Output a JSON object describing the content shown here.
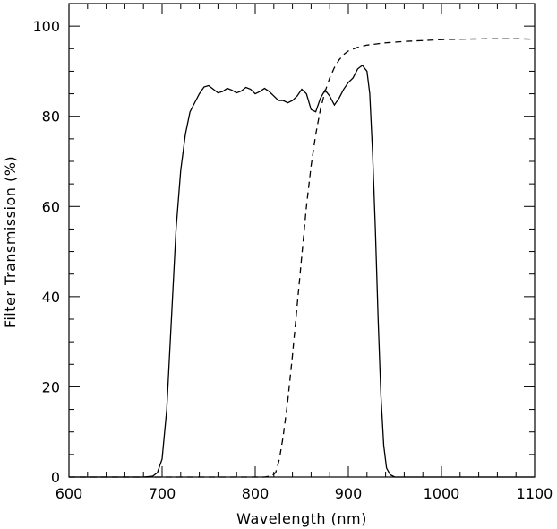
{
  "chart_data": {
    "type": "line",
    "title": "",
    "xlabel": "Wavelength (nm)",
    "ylabel": "Filter Transmission (%)",
    "xlim": [
      600,
      1100
    ],
    "ylim": [
      0,
      105
    ],
    "x_ticks": [
      600,
      700,
      800,
      900,
      1000,
      1100
    ],
    "y_ticks": [
      0,
      20,
      40,
      60,
      80,
      100
    ],
    "x_minor_step": 20,
    "y_minor_step": 5,
    "grid": false,
    "legend": "none",
    "series": [
      {
        "style": "solid",
        "color": "#000000",
        "points": [
          [
            600,
            0
          ],
          [
            680,
            0
          ],
          [
            690,
            0.2
          ],
          [
            695,
            1
          ],
          [
            700,
            4
          ],
          [
            705,
            15
          ],
          [
            710,
            35
          ],
          [
            715,
            55
          ],
          [
            720,
            68
          ],
          [
            725,
            76
          ],
          [
            730,
            81
          ],
          [
            735,
            83
          ],
          [
            740,
            85
          ],
          [
            745,
            86.5
          ],
          [
            750,
            86.8
          ],
          [
            755,
            86
          ],
          [
            760,
            85.2
          ],
          [
            765,
            85.5
          ],
          [
            770,
            86.2
          ],
          [
            775,
            85.8
          ],
          [
            780,
            85.2
          ],
          [
            785,
            85.6
          ],
          [
            790,
            86.4
          ],
          [
            795,
            86
          ],
          [
            800,
            85
          ],
          [
            805,
            85.5
          ],
          [
            810,
            86.2
          ],
          [
            815,
            85.5
          ],
          [
            820,
            84.5
          ],
          [
            825,
            83.5
          ],
          [
            830,
            83.5
          ],
          [
            835,
            83
          ],
          [
            840,
            83.5
          ],
          [
            845,
            84.5
          ],
          [
            850,
            86
          ],
          [
            855,
            85
          ],
          [
            860,
            81.5
          ],
          [
            865,
            81
          ],
          [
            870,
            84
          ],
          [
            875,
            85.8
          ],
          [
            880,
            84.5
          ],
          [
            885,
            82.5
          ],
          [
            890,
            84
          ],
          [
            895,
            86
          ],
          [
            900,
            87.5
          ],
          [
            905,
            88.5
          ],
          [
            910,
            90.5
          ],
          [
            915,
            91.3
          ],
          [
            920,
            90
          ],
          [
            923,
            85
          ],
          [
            926,
            72
          ],
          [
            929,
            55
          ],
          [
            932,
            35
          ],
          [
            935,
            18
          ],
          [
            938,
            7
          ],
          [
            941,
            2
          ],
          [
            945,
            0.5
          ],
          [
            950,
            0
          ],
          [
            1100,
            0
          ]
        ]
      },
      {
        "style": "dashed",
        "color": "#000000",
        "points": [
          [
            600,
            0
          ],
          [
            810,
            0
          ],
          [
            818,
            0.3
          ],
          [
            822,
            1
          ],
          [
            826,
            4
          ],
          [
            830,
            9
          ],
          [
            835,
            17
          ],
          [
            840,
            27
          ],
          [
            845,
            38
          ],
          [
            850,
            49
          ],
          [
            855,
            60
          ],
          [
            860,
            69
          ],
          [
            865,
            76
          ],
          [
            870,
            81.5
          ],
          [
            875,
            85.5
          ],
          [
            880,
            88.5
          ],
          [
            885,
            90.8
          ],
          [
            890,
            92.5
          ],
          [
            895,
            93.7
          ],
          [
            900,
            94.5
          ],
          [
            910,
            95.3
          ],
          [
            920,
            95.8
          ],
          [
            940,
            96.3
          ],
          [
            960,
            96.6
          ],
          [
            980,
            96.8
          ],
          [
            1000,
            97
          ],
          [
            1020,
            97.1
          ],
          [
            1050,
            97.2
          ],
          [
            1080,
            97.2
          ],
          [
            1100,
            97.1
          ]
        ]
      }
    ]
  }
}
